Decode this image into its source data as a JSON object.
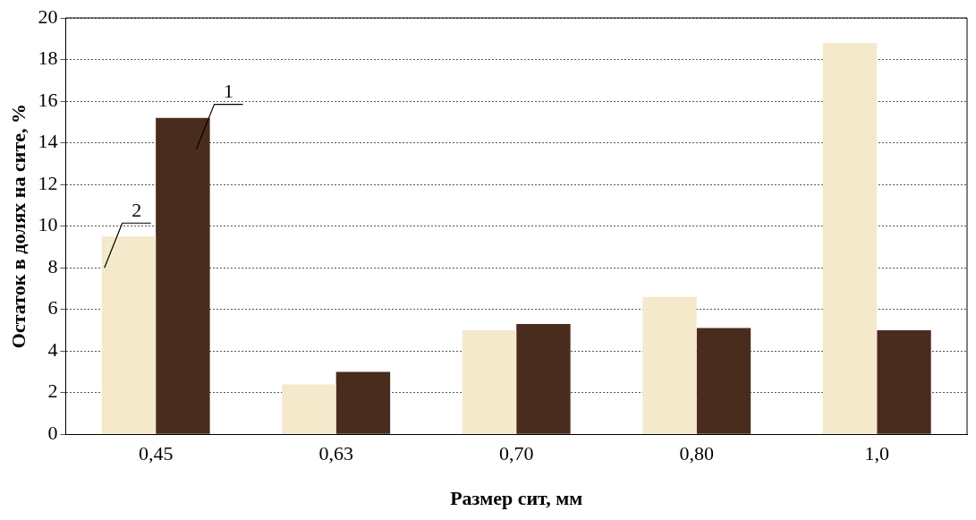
{
  "chart_data": {
    "type": "bar",
    "xlabel": "Размер сит, мм",
    "ylabel": "Остаток в долях на сите, %",
    "categories": [
      "0,45",
      "0,63",
      "0,70",
      "0,80",
      "1,0"
    ],
    "series": [
      {
        "name": "2",
        "color": "#f5e9cc",
        "values": [
          9.5,
          2.4,
          5.0,
          6.6,
          18.8
        ]
      },
      {
        "name": "1",
        "color": "#4a2c1e",
        "values": [
          15.2,
          3.0,
          5.3,
          5.1,
          5.0
        ]
      }
    ],
    "ylim": [
      0,
      20
    ],
    "yticks": [
      0,
      2,
      4,
      6,
      8,
      10,
      12,
      14,
      16,
      18,
      20
    ],
    "grid": "y",
    "legend": false
  }
}
